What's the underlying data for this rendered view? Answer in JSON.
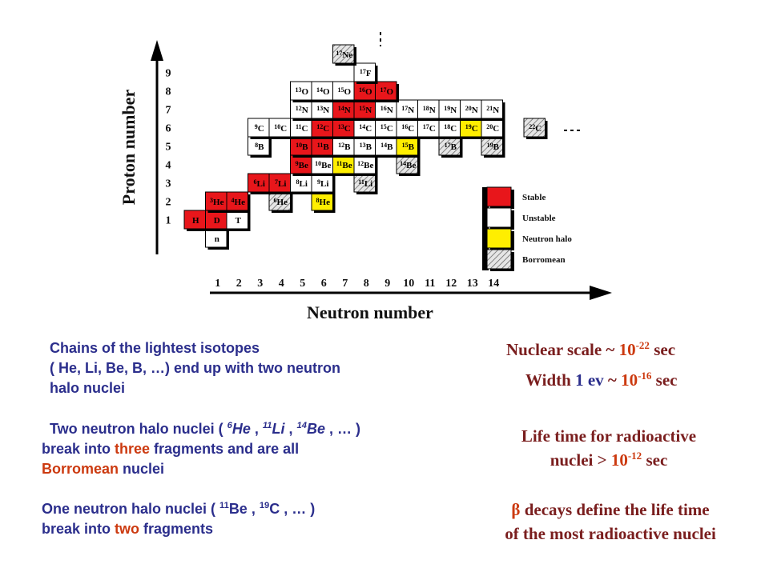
{
  "axes": {
    "y_label": "Proton number",
    "x_label": "Neutron number",
    "y_ticks": [
      "1",
      "2",
      "3",
      "4",
      "5",
      "6",
      "7",
      "8",
      "9"
    ],
    "x_ticks": [
      "1",
      "2",
      "3",
      "4",
      "5",
      "6",
      "7",
      "8",
      "9",
      "10",
      "11",
      "12",
      "13",
      "14"
    ]
  },
  "legend": [
    {
      "label": "Stable",
      "type": "stable"
    },
    {
      "label": "Unstable",
      "type": "unstable"
    },
    {
      "label": "Neutron halo",
      "type": "halo"
    },
    {
      "label": "Borromean",
      "type": "borromean"
    }
  ],
  "colors": {
    "stable": "#e8161b",
    "unstable": "#ffffff",
    "halo": "#ffee00",
    "borromean": "#d0d0d0",
    "text_blue": "#2b2e8c",
    "text_red": "#cc3a10",
    "text_brown": "#7a1e1e"
  },
  "nuclides": [
    {
      "z": 0,
      "n": 1,
      "mass": "",
      "sym": "n",
      "type": "unstable"
    },
    {
      "z": 1,
      "n": 0,
      "mass": "",
      "sym": "H",
      "type": "stable"
    },
    {
      "z": 1,
      "n": 1,
      "mass": "",
      "sym": "D",
      "type": "stable"
    },
    {
      "z": 1,
      "n": 2,
      "mass": "",
      "sym": "T",
      "type": "unstable"
    },
    {
      "z": 2,
      "n": 1,
      "mass": "3",
      "sym": "He",
      "type": "stable"
    },
    {
      "z": 2,
      "n": 2,
      "mass": "4",
      "sym": "He",
      "type": "stable"
    },
    {
      "z": 2,
      "n": 4,
      "mass": "6",
      "sym": "He",
      "type": "borromean"
    },
    {
      "z": 2,
      "n": 6,
      "mass": "8",
      "sym": "He",
      "type": "halo"
    },
    {
      "z": 3,
      "n": 3,
      "mass": "6",
      "sym": "Li",
      "type": "stable"
    },
    {
      "z": 3,
      "n": 4,
      "mass": "7",
      "sym": "Li",
      "type": "stable"
    },
    {
      "z": 3,
      "n": 5,
      "mass": "8",
      "sym": "Li",
      "type": "unstable"
    },
    {
      "z": 3,
      "n": 6,
      "mass": "9",
      "sym": "Li",
      "type": "unstable"
    },
    {
      "z": 3,
      "n": 8,
      "mass": "11",
      "sym": "Li",
      "type": "borromean"
    },
    {
      "z": 4,
      "n": 5,
      "mass": "9",
      "sym": "Be",
      "type": "stable"
    },
    {
      "z": 4,
      "n": 6,
      "mass": "10",
      "sym": "Be",
      "type": "unstable"
    },
    {
      "z": 4,
      "n": 7,
      "mass": "11",
      "sym": "Be",
      "type": "halo"
    },
    {
      "z": 4,
      "n": 8,
      "mass": "12",
      "sym": "Be",
      "type": "unstable"
    },
    {
      "z": 4,
      "n": 10,
      "mass": "14",
      "sym": "Be",
      "type": "borromean"
    },
    {
      "z": 5,
      "n": 3,
      "mass": "8",
      "sym": "B",
      "type": "unstable"
    },
    {
      "z": 5,
      "n": 5,
      "mass": "10",
      "sym": "B",
      "type": "stable"
    },
    {
      "z": 5,
      "n": 6,
      "mass": "11",
      "sym": "B",
      "type": "stable"
    },
    {
      "z": 5,
      "n": 7,
      "mass": "12",
      "sym": "B",
      "type": "unstable"
    },
    {
      "z": 5,
      "n": 8,
      "mass": "13",
      "sym": "B",
      "type": "unstable"
    },
    {
      "z": 5,
      "n": 9,
      "mass": "14",
      "sym": "B",
      "type": "unstable"
    },
    {
      "z": 5,
      "n": 10,
      "mass": "15",
      "sym": "B",
      "type": "halo"
    },
    {
      "z": 5,
      "n": 12,
      "mass": "17",
      "sym": "B",
      "type": "borromean"
    },
    {
      "z": 5,
      "n": 14,
      "mass": "19",
      "sym": "B",
      "type": "borromean"
    },
    {
      "z": 6,
      "n": 3,
      "mass": "9",
      "sym": "C",
      "type": "unstable"
    },
    {
      "z": 6,
      "n": 4,
      "mass": "10",
      "sym": "C",
      "type": "unstable"
    },
    {
      "z": 6,
      "n": 5,
      "mass": "11",
      "sym": "C",
      "type": "unstable"
    },
    {
      "z": 6,
      "n": 6,
      "mass": "12",
      "sym": "C",
      "type": "stable"
    },
    {
      "z": 6,
      "n": 7,
      "mass": "13",
      "sym": "C",
      "type": "stable"
    },
    {
      "z": 6,
      "n": 8,
      "mass": "14",
      "sym": "C",
      "type": "unstable"
    },
    {
      "z": 6,
      "n": 9,
      "mass": "15",
      "sym": "C",
      "type": "unstable"
    },
    {
      "z": 6,
      "n": 10,
      "mass": "16",
      "sym": "C",
      "type": "unstable"
    },
    {
      "z": 6,
      "n": 11,
      "mass": "17",
      "sym": "C",
      "type": "unstable"
    },
    {
      "z": 6,
      "n": 12,
      "mass": "18",
      "sym": "C",
      "type": "unstable"
    },
    {
      "z": 6,
      "n": 13,
      "mass": "19",
      "sym": "C",
      "type": "halo"
    },
    {
      "z": 6,
      "n": 14,
      "mass": "20",
      "sym": "C",
      "type": "unstable"
    },
    {
      "z": 6,
      "n": 16,
      "mass": "22",
      "sym": "C",
      "type": "borromean"
    },
    {
      "z": 7,
      "n": 5,
      "mass": "12",
      "sym": "N",
      "type": "unstable"
    },
    {
      "z": 7,
      "n": 6,
      "mass": "13",
      "sym": "N",
      "type": "unstable"
    },
    {
      "z": 7,
      "n": 7,
      "mass": "14",
      "sym": "N",
      "type": "stable"
    },
    {
      "z": 7,
      "n": 8,
      "mass": "15",
      "sym": "N",
      "type": "stable"
    },
    {
      "z": 7,
      "n": 9,
      "mass": "16",
      "sym": "N",
      "type": "unstable"
    },
    {
      "z": 7,
      "n": 10,
      "mass": "17",
      "sym": "N",
      "type": "unstable"
    },
    {
      "z": 7,
      "n": 11,
      "mass": "18",
      "sym": "N",
      "type": "unstable"
    },
    {
      "z": 7,
      "n": 12,
      "mass": "19",
      "sym": "N",
      "type": "unstable"
    },
    {
      "z": 7,
      "n": 13,
      "mass": "20",
      "sym": "N",
      "type": "unstable"
    },
    {
      "z": 7,
      "n": 14,
      "mass": "21",
      "sym": "N",
      "type": "unstable"
    },
    {
      "z": 8,
      "n": 5,
      "mass": "13",
      "sym": "O",
      "type": "unstable"
    },
    {
      "z": 8,
      "n": 6,
      "mass": "14",
      "sym": "O",
      "type": "unstable"
    },
    {
      "z": 8,
      "n": 7,
      "mass": "15",
      "sym": "O",
      "type": "unstable"
    },
    {
      "z": 8,
      "n": 8,
      "mass": "16",
      "sym": "O",
      "type": "stable"
    },
    {
      "z": 8,
      "n": 9,
      "mass": "17",
      "sym": "O",
      "type": "stable"
    },
    {
      "z": 9,
      "n": 8,
      "mass": "17",
      "sym": "F",
      "type": "unstable"
    },
    {
      "z": 10,
      "n": 7,
      "mass": "17",
      "sym": "Ne",
      "type": "borromean"
    }
  ],
  "text": {
    "para1": {
      "l1": "Chains of the lightest isotopes",
      "l2": "( He, Li, Be, B, …)  end up with two neutron",
      "l3": "halo nuclei"
    },
    "para2": {
      "a": "Two neutron halo nuclei ( ",
      "m1": "6",
      "s1": "He",
      "sep1": " , ",
      "m2": "11",
      "s2": "Li",
      "sep2": " , ",
      "m3": "14",
      "s3": "Be",
      "b": " ,  …  )",
      "l2a": "break into ",
      "three": "three",
      "l2b": " fragments and are all",
      "l3": "Borromean",
      "l3b": " nuclei"
    },
    "para3": {
      "a": "One neutron halo nuclei ( ",
      "m1": "11",
      "s1": "Be",
      "sep1": " , ",
      "m2": "19",
      "s2": "C",
      "b": " , …    )",
      "l2a": "break into ",
      "two": "two",
      "l2b": " fragments"
    },
    "nuclear": {
      "a": "Nuclear scale ~ ",
      "base": "10",
      "exp": "-22",
      "b": " sec"
    },
    "width": {
      "a": "Width ",
      "one": "1",
      "ev": " ev",
      "tilde": "  ~ ",
      "base": "10",
      "exp": "-16",
      "b": " sec"
    },
    "life": {
      "l1": "Life time for radioactive",
      "l2a": "nuclei > ",
      "base": "10",
      "exp": "-12",
      "b": " sec"
    },
    "beta": {
      "sym": "β",
      "l1": " decays define the life time",
      "l2": "of the most radioactive nuclei"
    }
  }
}
